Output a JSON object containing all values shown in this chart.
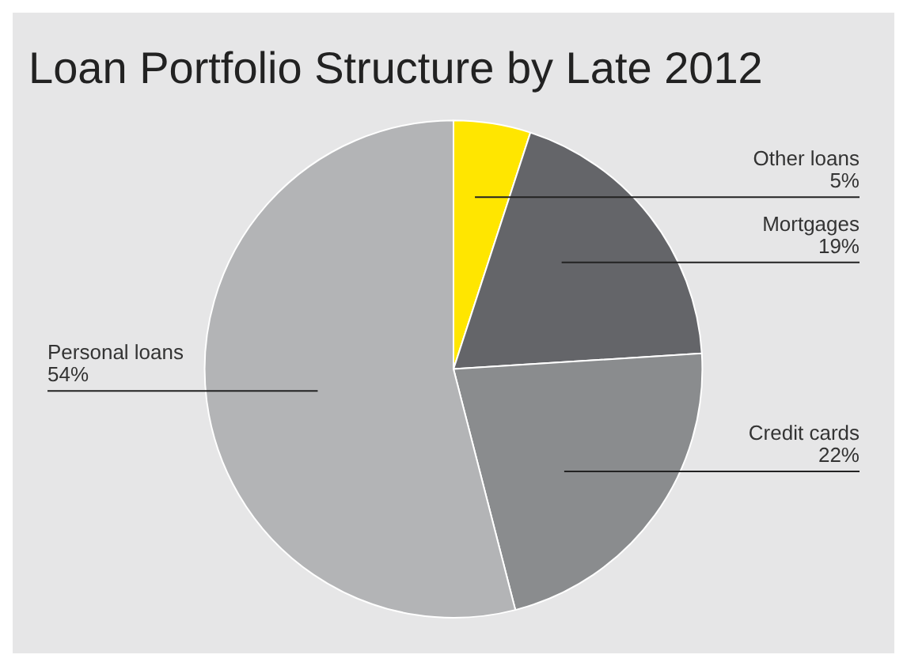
{
  "chart_data": {
    "type": "pie",
    "title": "Loan Portfolio Structure by Late 2012",
    "categories": [
      "Other loans",
      "Mortgages",
      "Credit cards",
      "Personal loans"
    ],
    "values": [
      5,
      19,
      22,
      54
    ],
    "value_labels": [
      "5%",
      "19%",
      "22%",
      "54%"
    ],
    "colors": [
      "#ffe600",
      "#646569",
      "#8a8c8e",
      "#b3b4b6"
    ],
    "legend": false
  }
}
